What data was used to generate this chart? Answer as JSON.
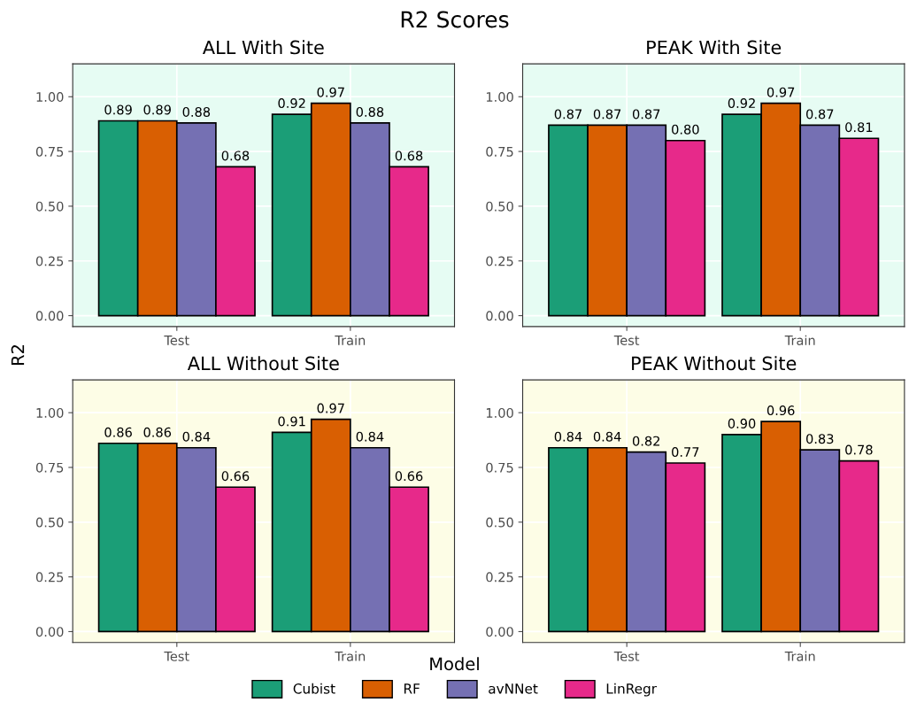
{
  "chart_data": [
    {
      "type": "bar",
      "title": "ALL With Site",
      "ylabel": "R2",
      "annotations": [
        "R2 Scores"
      ],
      "legend_title": "Model",
      "legend": "bottom",
      "categories": [
        "Test",
        "Train"
      ],
      "ylim": [
        -0.05,
        1.15
      ],
      "yticks": [
        {
          "value": 0,
          "label": "0.00"
        },
        {
          "value": 0.25,
          "label": "0.25"
        },
        {
          "value": 0.5,
          "label": "0.50"
        },
        {
          "value": 0.75,
          "label": "0.75"
        },
        {
          "value": 1,
          "label": "1.00"
        }
      ],
      "grid": true,
      "series": [
        {
          "name": "Cubist",
          "color": "#1b9e77",
          "values": [
            0.89,
            0.92
          ],
          "value_labels": [
            "0.89",
            "0.92"
          ]
        },
        {
          "name": "RF",
          "color": "#d95f02",
          "values": [
            0.89,
            0.97
          ],
          "value_labels": [
            "0.89",
            "0.97"
          ]
        },
        {
          "name": "avNNet",
          "color": "#7570b3",
          "values": [
            0.88,
            0.88
          ],
          "value_labels": [
            "0.88",
            "0.88"
          ]
        },
        {
          "name": "LinRegr",
          "color": "#e7298a",
          "values": [
            0.68,
            0.68
          ],
          "value_labels": [
            "0.68",
            "0.68"
          ]
        }
      ]
    },
    {
      "type": "bar",
      "title": "PEAK With Site",
      "categories": [
        "Test",
        "Train"
      ],
      "ylim": [
        -0.05,
        1.15
      ],
      "yticks": [
        {
          "value": 0,
          "label": "0.00"
        },
        {
          "value": 0.25,
          "label": "0.25"
        },
        {
          "value": 0.5,
          "label": "0.50"
        },
        {
          "value": 0.75,
          "label": "0.75"
        },
        {
          "value": 1,
          "label": "1.00"
        }
      ],
      "grid": true,
      "series": [
        {
          "color": "#1b9e77",
          "values": [
            0.87,
            0.92
          ],
          "value_labels": [
            "0.87",
            "0.92"
          ]
        },
        {
          "color": "#d95f02",
          "values": [
            0.87,
            0.97
          ],
          "value_labels": [
            "0.87",
            "0.97"
          ]
        },
        {
          "color": "#7570b3",
          "values": [
            0.87,
            0.87
          ],
          "value_labels": [
            "0.87",
            "0.87"
          ]
        },
        {
          "color": "#e7298a",
          "values": [
            0.8,
            0.81
          ],
          "value_labels": [
            "0.80",
            "0.81"
          ]
        }
      ]
    },
    {
      "type": "bar",
      "title": "ALL Without Site",
      "categories": [
        "Test",
        "Train"
      ],
      "ylim": [
        -0.05,
        1.15
      ],
      "yticks": [
        {
          "value": 0,
          "label": "0.00"
        },
        {
          "value": 0.25,
          "label": "0.25"
        },
        {
          "value": 0.5,
          "label": "0.50"
        },
        {
          "value": 0.75,
          "label": "0.75"
        },
        {
          "value": 1,
          "label": "1.00"
        }
      ],
      "grid": true,
      "series": [
        {
          "color": "#1b9e77",
          "values": [
            0.86,
            0.91
          ],
          "value_labels": [
            "0.86",
            "0.91"
          ]
        },
        {
          "color": "#d95f02",
          "values": [
            0.86,
            0.97
          ],
          "value_labels": [
            "0.86",
            "0.97"
          ]
        },
        {
          "color": "#7570b3",
          "values": [
            0.84,
            0.84
          ],
          "value_labels": [
            "0.84",
            "0.84"
          ]
        },
        {
          "color": "#e7298a",
          "values": [
            0.66,
            0.66
          ],
          "value_labels": [
            "0.66",
            "0.66"
          ]
        }
      ]
    },
    {
      "type": "bar",
      "title": "PEAK Without Site",
      "categories": [
        "Test",
        "Train"
      ],
      "ylim": [
        -0.05,
        1.15
      ],
      "yticks": [
        {
          "value": 0,
          "label": "0.00"
        },
        {
          "value": 0.25,
          "label": "0.25"
        },
        {
          "value": 0.5,
          "label": "0.50"
        },
        {
          "value": 0.75,
          "label": "0.75"
        },
        {
          "value": 1,
          "label": "1.00"
        }
      ],
      "grid": true,
      "series": [
        {
          "color": "#1b9e77",
          "values": [
            0.84,
            0.9
          ],
          "value_labels": [
            "0.84",
            "0.90"
          ]
        },
        {
          "color": "#d95f02",
          "values": [
            0.84,
            0.96
          ],
          "value_labels": [
            "0.84",
            "0.96"
          ]
        },
        {
          "color": "#7570b3",
          "values": [
            0.82,
            0.83
          ],
          "value_labels": [
            "0.82",
            "0.83"
          ]
        },
        {
          "color": "#e7298a",
          "values": [
            0.77,
            0.78
          ],
          "value_labels": [
            "0.77",
            "0.78"
          ]
        }
      ]
    }
  ]
}
